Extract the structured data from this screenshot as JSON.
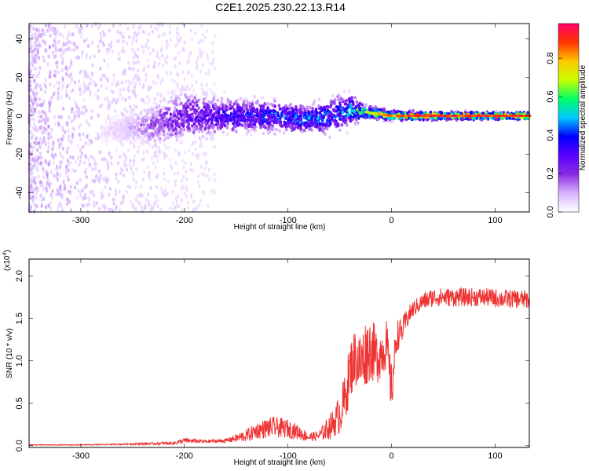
{
  "figure": {
    "title": "C2E1.2025.230.22.13.R14"
  },
  "chart_data": [
    {
      "type": "heatmap",
      "xlabel": "Height of straight line (km)",
      "ylabel": "Frequency (Hz)",
      "xlim": [
        -350,
        133
      ],
      "ylim": [
        -50,
        48
      ],
      "x_ticks": [
        -300,
        -200,
        -100,
        0,
        100
      ],
      "x_tick_labels": [
        "-300",
        "-200",
        "-100",
        "0",
        "100"
      ],
      "y_ticks": [
        -40,
        -20,
        0,
        20,
        40
      ],
      "y_tick_labels": [
        "-40",
        "-20",
        "0",
        "20",
        "40"
      ],
      "colorbar": {
        "label": "Normalized spectral amplitude",
        "range": [
          0.0,
          0.98
        ],
        "ticks": [
          0.0,
          0.2,
          0.4,
          0.6,
          0.8
        ],
        "tick_labels": [
          "0.0",
          "0.2",
          "0.4",
          "0.6",
          "0.8"
        ],
        "colormap": [
          "#ffffff",
          "#d9b3ff",
          "#8a2be2",
          "#5a00ff",
          "#0000ff",
          "#00c8ff",
          "#00ff66",
          "#c8ff00",
          "#ffc800",
          "#ff3300",
          "#ff0066"
        ]
      },
      "ridge": [
        {
          "x": -275,
          "center_hz": -8,
          "spread_hz": 4,
          "amplitude": 0.05
        },
        {
          "x": -250,
          "center_hz": -6,
          "spread_hz": 5,
          "amplitude": 0.12
        },
        {
          "x": -230,
          "center_hz": -5,
          "spread_hz": 7,
          "amplitude": 0.2
        },
        {
          "x": -200,
          "center_hz": 0,
          "spread_hz": 8,
          "amplitude": 0.3
        },
        {
          "x": -170,
          "center_hz": 0,
          "spread_hz": 6,
          "amplitude": 0.35
        },
        {
          "x": -140,
          "center_hz": 0,
          "spread_hz": 5,
          "amplitude": 0.42
        },
        {
          "x": -110,
          "center_hz": 0,
          "spread_hz": 5,
          "amplitude": 0.45
        },
        {
          "x": -80,
          "center_hz": -2,
          "spread_hz": 4,
          "amplitude": 0.5
        },
        {
          "x": -60,
          "center_hz": 0,
          "spread_hz": 6,
          "amplitude": 0.45
        },
        {
          "x": -40,
          "center_hz": 3,
          "spread_hz": 5,
          "amplitude": 0.55
        },
        {
          "x": -25,
          "center_hz": 2,
          "spread_hz": 2,
          "amplitude": 0.7
        },
        {
          "x": 0,
          "center_hz": 0,
          "spread_hz": 1.5,
          "amplitude": 0.9
        },
        {
          "x": 50,
          "center_hz": 0,
          "spread_hz": 1.2,
          "amplitude": 0.95
        },
        {
          "x": 100,
          "center_hz": 0,
          "spread_hz": 1.2,
          "amplitude": 0.95
        },
        {
          "x": 130,
          "center_hz": 0,
          "spread_hz": 1.2,
          "amplitude": 0.95
        }
      ]
    },
    {
      "type": "line",
      "xlabel": "Height of straight line (km)",
      "ylabel": "SNR (10 * v/v)",
      "y_multiplier_label": "(x10",
      "y_multiplier_exponent": "4",
      "xlim": [
        -350,
        133
      ],
      "ylim": [
        -0.02,
        2.2
      ],
      "x_ticks": [
        -300,
        -200,
        -100,
        0,
        100
      ],
      "x_tick_labels": [
        "-300",
        "-200",
        "-100",
        "0",
        "100"
      ],
      "y_ticks": [
        0.0,
        0.5,
        1.0,
        1.5,
        2.0
      ],
      "y_tick_labels": [
        "0.0",
        "0.5",
        "1.0",
        "1.5",
        "2.0"
      ],
      "line_color": "#ee3333",
      "series": [
        {
          "x": [
            -350,
            -300,
            -250,
            -210,
            -200,
            -180,
            -160,
            -140,
            -130,
            -115,
            -100,
            -90,
            -80,
            -70,
            -60,
            -55,
            -50,
            -45,
            -40,
            -35,
            -30,
            -25,
            -20,
            -15,
            -10,
            -5,
            0,
            5,
            10,
            15,
            20,
            25,
            30,
            35,
            40,
            50,
            60,
            70,
            80,
            90,
            100,
            110,
            120,
            133
          ],
          "values": [
            0.01,
            0.01,
            0.02,
            0.03,
            0.06,
            0.05,
            0.06,
            0.12,
            0.18,
            0.22,
            0.2,
            0.16,
            0.1,
            0.12,
            0.22,
            0.28,
            0.38,
            0.55,
            0.9,
            1.05,
            0.95,
            1.1,
            1.15,
            1.05,
            1.1,
            1.2,
            0.65,
            1.3,
            1.35,
            1.5,
            1.6,
            1.65,
            1.7,
            1.72,
            1.75,
            1.75,
            1.75,
            1.75,
            1.75,
            1.75,
            1.74,
            1.73,
            1.73,
            1.72
          ],
          "noise_band": [
            0.01,
            0.01,
            0.02,
            0.04,
            0.07,
            0.04,
            0.05,
            0.15,
            0.2,
            0.25,
            0.22,
            0.18,
            0.1,
            0.12,
            0.3,
            0.35,
            0.5,
            0.6,
            0.7,
            0.7,
            0.8,
            0.8,
            0.75,
            0.7,
            0.6,
            0.6,
            0.6,
            0.4,
            0.3,
            0.25,
            0.2,
            0.2,
            0.2,
            0.22,
            0.22,
            0.22,
            0.22,
            0.22,
            0.22,
            0.22,
            0.22,
            0.22,
            0.22,
            0.22
          ]
        }
      ]
    }
  ]
}
